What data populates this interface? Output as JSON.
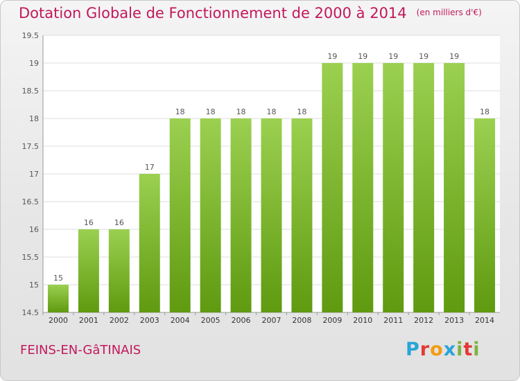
{
  "title": "Dotation Globale de Fonctionnement de 2000 à 2014",
  "title_unit": "(en milliers d'€)",
  "commune": "FEINS-EN-GâTINAIS",
  "logo": {
    "letters": [
      "P",
      "r",
      "o",
      "x",
      "i",
      "t",
      "i"
    ],
    "colors": [
      "#2aa4d8",
      "#e53935",
      "#f39c12",
      "#2aa4d8",
      "#7cb342",
      "#e53935",
      "#7cb342"
    ]
  },
  "colors": {
    "title": "#c2185b",
    "bar_top": "#9bd050",
    "bar_bottom": "#5f9a10",
    "label": "#555555"
  },
  "chart_data": {
    "type": "bar",
    "categories": [
      "2000",
      "2001",
      "2002",
      "2003",
      "2004",
      "2005",
      "2006",
      "2007",
      "2008",
      "2009",
      "2010",
      "2011",
      "2012",
      "2013",
      "2014"
    ],
    "values": [
      15,
      16,
      16,
      17,
      18,
      18,
      18,
      18,
      18,
      19,
      19,
      19,
      19,
      19,
      18
    ],
    "data_labels": [
      "15",
      "16",
      "16",
      "17",
      "18",
      "18",
      "18",
      "18",
      "18",
      "19",
      "19",
      "19",
      "19",
      "19",
      "18"
    ],
    "ylim": [
      14.5,
      19.5
    ],
    "yticks": [
      14.5,
      15,
      15.5,
      16,
      16.5,
      17,
      17.5,
      18,
      18.5,
      19,
      19.5
    ],
    "ytick_labels": [
      "14.5",
      "15",
      "15.5",
      "16",
      "16.5",
      "17",
      "17.5",
      "18",
      "18.5",
      "19",
      "19.5"
    ],
    "grid": true,
    "xlabel": "",
    "ylabel": ""
  }
}
